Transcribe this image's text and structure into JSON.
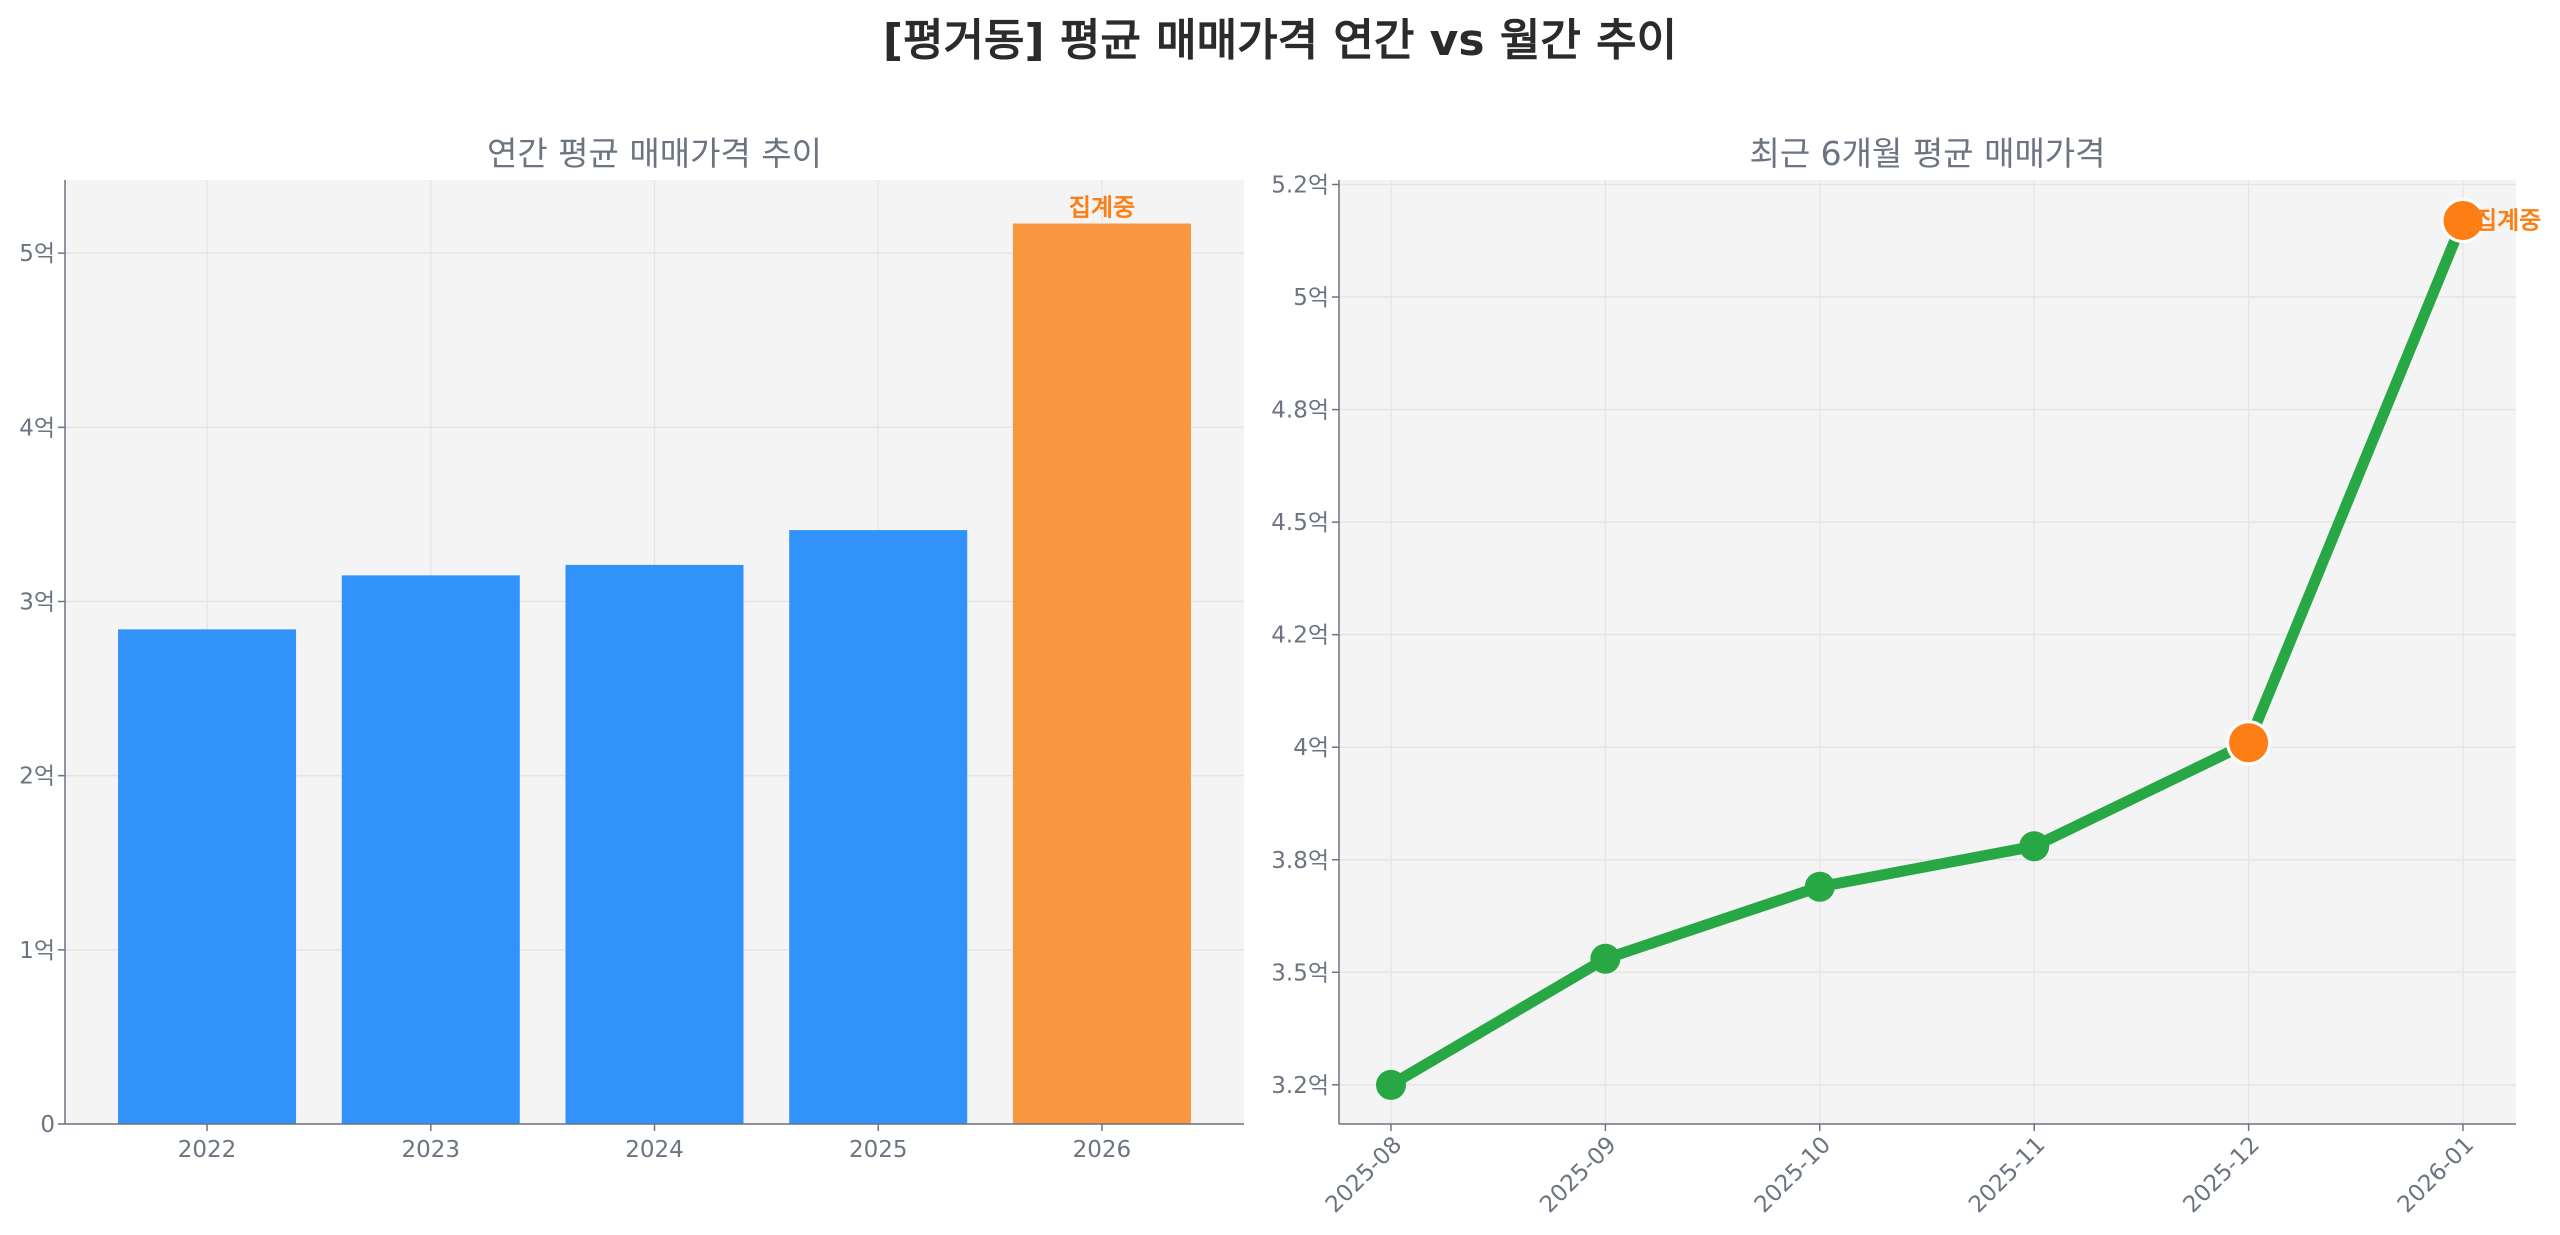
{
  "title": "[평거동] 평균 매매가격 연간 vs 월간 추이",
  "colors": {
    "bar": "#3192FB",
    "bar_current": "#F99740",
    "line": "#28A745",
    "marker_current": "#FD7E14",
    "plot_bg": "#F4F4F4",
    "grid": "#E4E4E4"
  },
  "chart_data": [
    {
      "type": "bar",
      "title": "연간 평균 매매가격 추이",
      "xlabel": "",
      "ylabel": "",
      "unit": "억",
      "categories": [
        "2022",
        "2023",
        "2024",
        "2025",
        "2026"
      ],
      "values": [
        2.84,
        3.15,
        3.21,
        3.41,
        5.17
      ],
      "highlight_index": 4,
      "annotation": {
        "index": 4,
        "text": "집계중"
      },
      "ylim": [
        0,
        5.42
      ],
      "yticks": [
        0,
        1,
        2,
        3,
        4,
        5
      ],
      "ytick_labels": [
        "0",
        "1억",
        "2억",
        "3억",
        "4억",
        "5억"
      ],
      "grid": true
    },
    {
      "type": "line",
      "title": "최근 6개월 평균 매매가격",
      "xlabel": "",
      "ylabel": "",
      "unit": "억",
      "x": [
        "2025-08",
        "2025-09",
        "2025-10",
        "2025-11",
        "2025-12",
        "2026-01"
      ],
      "values": [
        3.25,
        3.53,
        3.69,
        3.78,
        4.01,
        5.17
      ],
      "highlight_indices": [
        4,
        5
      ],
      "annotation": {
        "index": 5,
        "text": "집계중"
      },
      "ylim": [
        3.163,
        5.26
      ],
      "yticks": [
        3.25,
        3.5,
        3.75,
        4.0,
        4.25,
        4.5,
        4.75,
        5.0,
        5.25
      ],
      "ytick_labels": [
        "3.2억",
        "3.5억",
        "3.8억",
        "4억",
        "4.2억",
        "4.5억",
        "4.8억",
        "5억",
        "5.2억"
      ],
      "grid": true
    }
  ]
}
